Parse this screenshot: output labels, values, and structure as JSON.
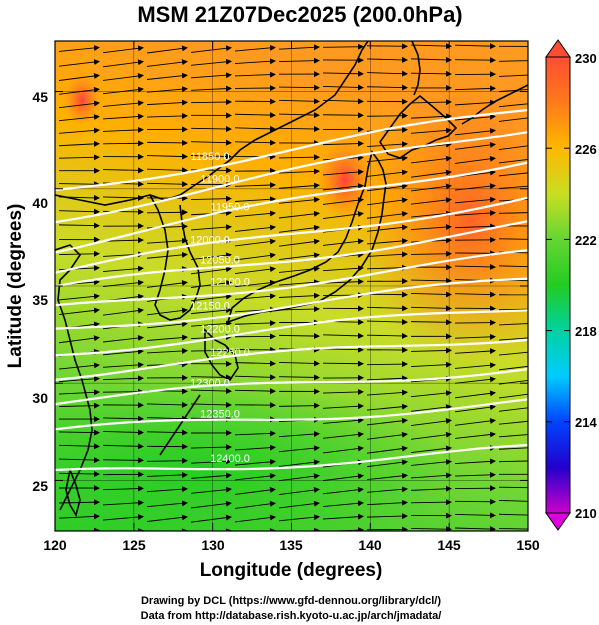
{
  "title": "MSM 21Z07Dec2025 (200.0hPa)",
  "xaxis": {
    "label": "Longitude (degrees)",
    "range": [
      120,
      150
    ],
    "ticks": [
      "120",
      "125",
      "130",
      "135",
      "140",
      "145",
      "150"
    ]
  },
  "yaxis": {
    "label": "Latitude  (degrees)",
    "range": [
      22.4,
      47.6
    ],
    "ticks": [
      "25",
      "30",
      "35",
      "40",
      "45"
    ]
  },
  "colorbar": {
    "range": [
      210,
      230
    ],
    "labels": [
      "230",
      "226",
      "222",
      "218",
      "214",
      "210"
    ],
    "colors": [
      "#cc00cc",
      "#2200cc",
      "#0044ff",
      "#00ccff",
      "#00d2a0",
      "#22cc22",
      "#66d633",
      "#c8de22",
      "#ffb800",
      "#ff7a1a",
      "#ff4d33"
    ]
  },
  "contours": {
    "labels": [
      "11850.0",
      "11900.0",
      "11950.0",
      "12000.0",
      "12050.0",
      "12100.0",
      "12150.0",
      "12200.0",
      "12250.0",
      "12300.0",
      "12350.0",
      "12400.0"
    ],
    "color": "#ffffff"
  },
  "footer": {
    "line1": "Drawing by DCL (https://www.gfd-dennou.org/library/dcl/)",
    "line2": "Data from http://database.rish.kyoto-u.ac.jp/arch/jmadata/"
  }
}
